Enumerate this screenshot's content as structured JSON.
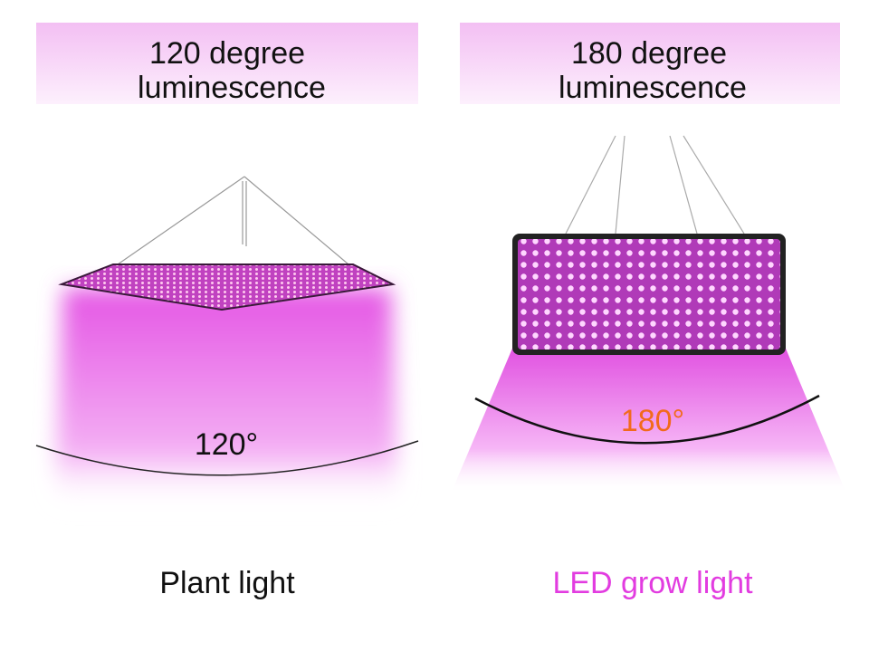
{
  "panels": [
    {
      "heading": [
        "120 degree",
        "luminescence"
      ],
      "angle": "120°",
      "caption": "Plant light"
    },
    {
      "heading": [
        "180 degree",
        "luminescence"
      ],
      "angle": "180°",
      "caption": "LED grow light"
    }
  ]
}
